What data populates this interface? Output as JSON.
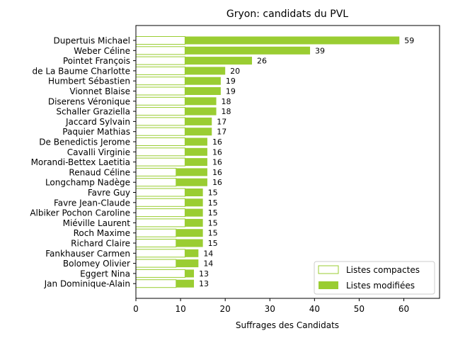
{
  "chart_data": {
    "type": "bar",
    "orientation": "horizontal",
    "stacked": true,
    "title": "Gryon: candidats du PVL",
    "xlabel": "Suffrages des Candidats",
    "ylabel": "",
    "xlim": [
      0,
      68
    ],
    "xticks": [
      0,
      10,
      20,
      30,
      40,
      50,
      60
    ],
    "grid": false,
    "legend_position": "bottom-right",
    "categories": [
      "Dupertuis Michael",
      "Weber Céline",
      "Pointet François",
      "de La Baume Charlotte",
      "Humbert Sébastien",
      "Vionnet Blaise",
      "Diserens Véronique",
      "Schaller Graziella",
      "Jaccard Sylvain",
      "Paquier Mathias",
      "De Benedictis Jerome",
      "Cavalli Virginie",
      "Morandi-Bettex Laetitia",
      "Renaud Céline",
      "Longchamp Nadège",
      "Favre Guy",
      "Favre Jean-Claude",
      "Albiker Pochon Caroline",
      "Miéville Laurent",
      "Roch Maxime",
      "Richard Claire",
      "Fankhauser Carmen",
      "Bolomey Olivier",
      "Eggert Nina",
      "Jan Dominique-Alain"
    ],
    "series": [
      {
        "name": "Listes compactes",
        "color": "#9acd32",
        "style": "outline",
        "values": [
          11,
          11,
          11,
          11,
          11,
          11,
          11,
          11,
          11,
          11,
          11,
          11,
          11,
          9,
          9,
          11,
          11,
          11,
          11,
          9,
          9,
          11,
          9,
          11,
          9
        ]
      },
      {
        "name": "Listes modifiées",
        "color": "#9acd32",
        "style": "filled",
        "values": [
          48,
          28,
          15,
          9,
          8,
          8,
          7,
          7,
          6,
          6,
          5,
          5,
          5,
          7,
          7,
          4,
          4,
          4,
          4,
          6,
          6,
          3,
          5,
          2,
          4
        ]
      }
    ],
    "totals": [
      59,
      39,
      26,
      20,
      19,
      19,
      18,
      18,
      17,
      17,
      16,
      16,
      16,
      16,
      16,
      15,
      15,
      15,
      15,
      15,
      15,
      14,
      14,
      13,
      13
    ]
  }
}
